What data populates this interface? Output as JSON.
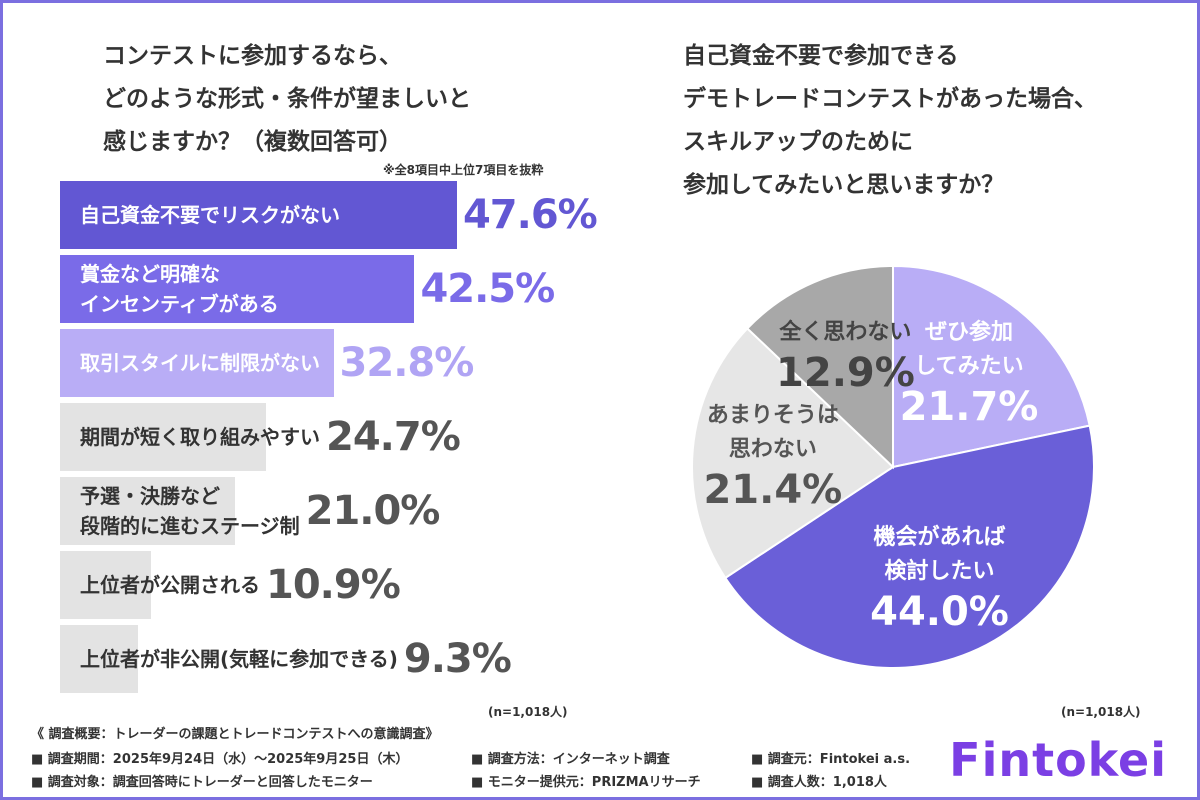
{
  "chart_data": [
    {
      "type": "bar",
      "title": "コンテストに参加するなら、\nどのような形式・条件が望ましいと\n感じますか？（複数回答可）",
      "note": "※全8項目中上位7項目を抜粋",
      "categories": [
        "自己資金不要でリスクがない",
        "賞金など明確な\nインセンティブがある",
        "取引スタイルに制限がない",
        "期間が短く取り組みやすい",
        "予選・決勝など\n段階的に進むステージ制",
        "上位者が公開される",
        "上位者が非公開(気軽に参加できる)"
      ],
      "values": [
        47.6,
        42.5,
        32.8,
        24.7,
        21.0,
        10.9,
        9.3
      ],
      "value_labels": [
        "47.6%",
        "42.5%",
        "32.8%",
        "24.7%",
        "21.0%",
        "10.9%",
        "9.3%"
      ],
      "colors": [
        "#6257d3",
        "#7a6be8",
        "#b9adf6",
        "#e3e3e3",
        "#e3e3e3",
        "#e3e3e3",
        "#e3e3e3"
      ],
      "text_colors": [
        "#ffffff",
        "#ffffff",
        "#ffffff",
        "#333333",
        "#333333",
        "#333333",
        "#333333"
      ],
      "value_label_colors": [
        "#6257d3",
        "#7a6be8",
        "#b0a4f4",
        "#555555",
        "#555555",
        "#555555",
        "#555555"
      ],
      "sample": "(n=1,018人)"
    },
    {
      "type": "pie",
      "title": "自己資金不要で参加できる\nデモトレードコンテストがあった場合、\nスキルアップのために\n参加してみたいと思いますか？",
      "categories": [
        "ぜひ参加\nしてみたい",
        "機会があれば\n検討したい",
        "あまりそうは\n思わない",
        "全く思わない"
      ],
      "values": [
        21.7,
        44.0,
        21.4,
        12.9
      ],
      "value_labels": [
        "21.7%",
        "44.0%",
        "21.4%",
        "12.9%"
      ],
      "colors": [
        "#b9adf6",
        "#6a5fd8",
        "#e6e6e6",
        "#a8a8a8"
      ],
      "text_colors": [
        "#ffffff",
        "#ffffff",
        "#555555",
        "#444444"
      ],
      "sample": "(n=1,018人)"
    }
  ],
  "footer": {
    "heading": "《 調査概要：トレーダーの課題とトレードコンテストへの意識調査》",
    "items": [
      "■ 調査期間：2025年9月24日（水）～2025年9月25日（木）",
      "■ 調査方法：インターネット調査",
      "■ 調査元：Fintokei a.s.",
      "■ 調査対象：調査回答時にトレーダーと回答したモニター",
      "■ モニター提供元：PRIZMAリサーチ",
      "■ 調査人数：1,018人"
    ]
  },
  "logo": "Fintokei"
}
